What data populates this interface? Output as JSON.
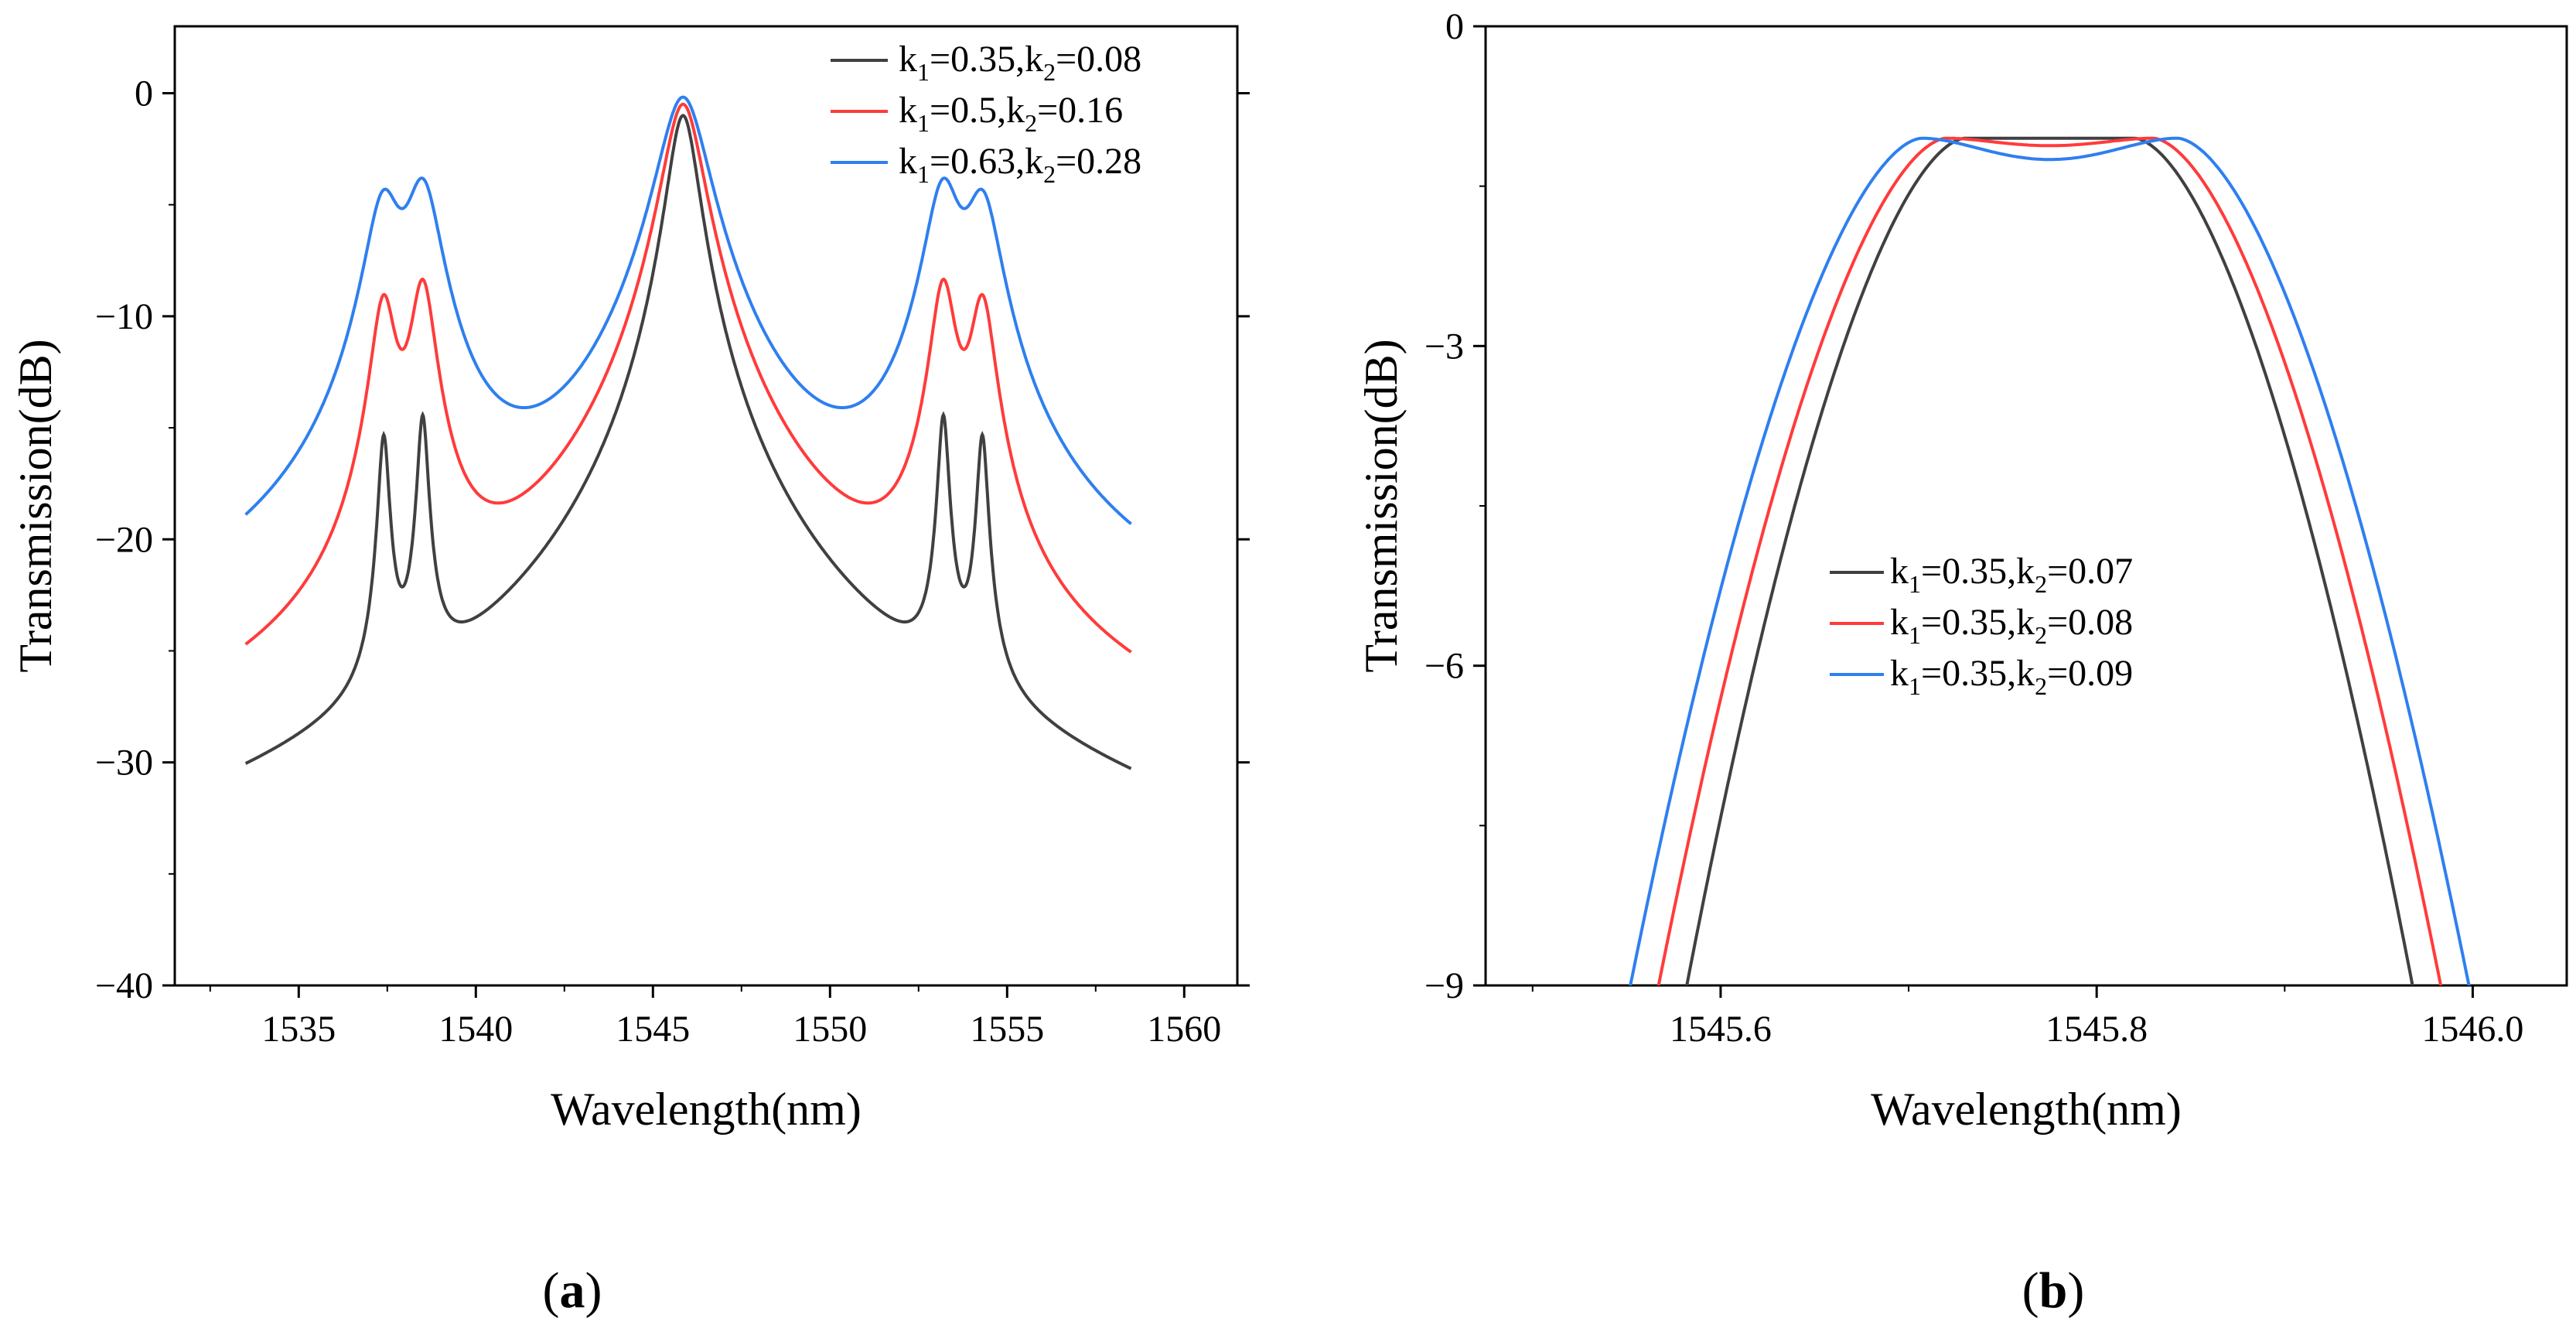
{
  "chart_data": [
    {
      "panel": "(a)",
      "type": "line",
      "xlabel": "Wavelength(nm)",
      "ylabel": "Transmission(dB)",
      "xlim": [
        1531.5,
        1561.5
      ],
      "ylim": [
        -40,
        3
      ],
      "xticks": [
        1535,
        1540,
        1545,
        1550,
        1555,
        1560
      ],
      "yticks": [
        0,
        -10,
        -20,
        -30,
        -40
      ],
      "legend_position": "top-right",
      "grid": false,
      "curve_model": {
        "shape": "lorentzian",
        "peaks": [
          {
            "x": 1537.4,
            "kind": "side"
          },
          {
            "x": 1538.5,
            "kind": "side"
          },
          {
            "x": 1545.85,
            "kind": "main"
          },
          {
            "x": 1553.2,
            "kind": "side"
          },
          {
            "x": 1554.3,
            "kind": "side"
          }
        ]
      },
      "series": [
        {
          "name_k1": "0.35",
          "name_k2": "0.08",
          "color": "#404040",
          "x_range": [
            1533.5,
            1558.5
          ],
          "peak_values": [
            -15.7,
            -14.8,
            -1.0,
            -14.8,
            -15.7
          ],
          "side_width": 0.145,
          "main_width": 0.42,
          "baseline": -55
        },
        {
          "name_k1": "0.5",
          "name_k2": "0.16",
          "color": "#ff3b3b",
          "x_range": [
            1533.5,
            1558.5
          ],
          "peak_values": [
            -9.6,
            -8.8,
            -0.5,
            -8.8,
            -9.6
          ],
          "side_width": 0.34,
          "main_width": 0.55,
          "baseline": -39.2
        },
        {
          "name_k1": "0.63",
          "name_k2": "0.28",
          "color": "#2f7fef",
          "x_range": [
            1533.5,
            1558.5
          ],
          "peak_values": [
            -5.2,
            -4.5,
            -0.2,
            -4.5,
            -5.2
          ],
          "side_width": 0.5,
          "main_width": 0.68,
          "baseline": -29.0
        }
      ]
    },
    {
      "panel": "(b)",
      "type": "line",
      "xlabel": "Wavelength(nm)",
      "ylabel": "Transmission(dB)",
      "xlim": [
        1545.475,
        1546.05
      ],
      "ylim": [
        -9,
        0
      ],
      "xticks": [
        "1545.6",
        "1545.8",
        "1546.0"
      ],
      "yticks": [
        "0",
        "-3",
        "-6",
        "-9"
      ],
      "legend_position": "center-left",
      "grid": false,
      "curve_model": {
        "shape": "flat-top",
        "center": 1545.775
      },
      "series": [
        {
          "name_k1": "0.35",
          "name_k2": "0.07",
          "color": "#404040",
          "half_width_at_-9": 0.193,
          "top_half_width": 0.045,
          "top": -1.05,
          "ripple": 0.0
        },
        {
          "name_k1": "0.35",
          "name_k2": "0.08",
          "color": "#ff3b3b",
          "half_width_at_-9": 0.208,
          "top_half_width": 0.055,
          "top": -1.05,
          "ripple": 0.07
        },
        {
          "name_k1": "0.35",
          "name_k2": "0.09",
          "color": "#2f7fef",
          "half_width_at_-9": 0.223,
          "top_half_width": 0.068,
          "top": -1.05,
          "ripple": 0.2
        }
      ]
    }
  ],
  "labels": {
    "panel_a_open": "(",
    "panel_a_letter": "a",
    "panel_a_close": ")",
    "panel_b_open": "(",
    "panel_b_letter": "b",
    "panel_b_close": ")",
    "legend_k1_prefix": "k",
    "legend_k1_sub": "1",
    "legend_k2_prefix": ",k",
    "legend_k2_sub": "2",
    "legend_eq": "="
  }
}
